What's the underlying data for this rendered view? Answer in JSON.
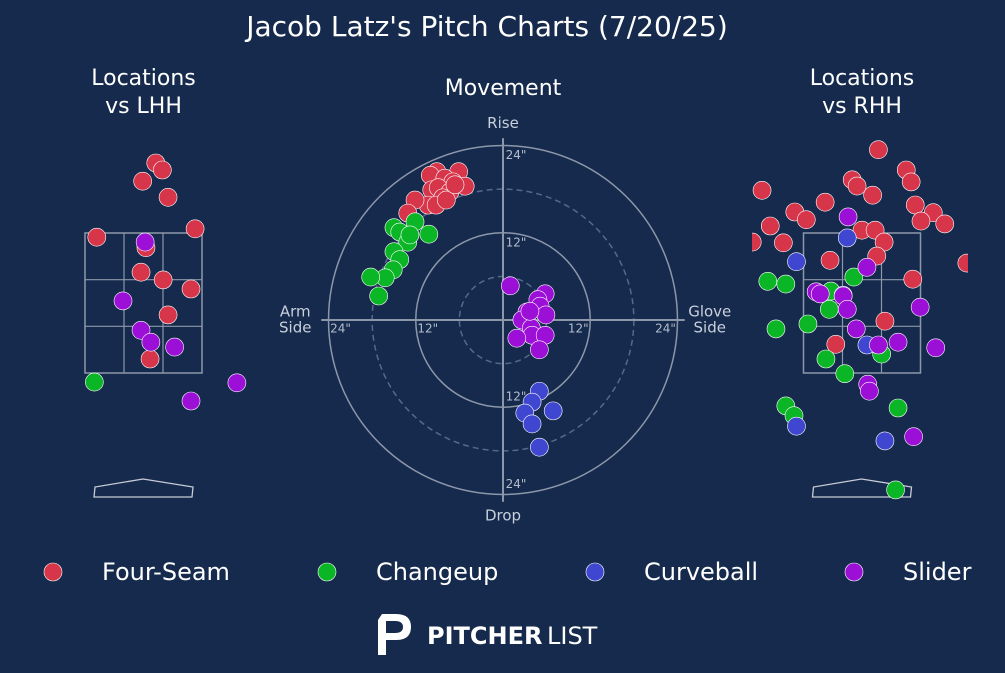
{
  "title": "Jacob Latz's Pitch Charts (7/20/25)",
  "footer": {
    "brand_bold": "PITCHER",
    "brand_light": "LIST"
  },
  "chart_data": [
    {
      "type": "scatter",
      "title_lines": [
        "Locations",
        "vs LHH"
      ],
      "xlim": [
        -1.3,
        1.3
      ],
      "ylim": [
        -0.3,
        4.8
      ],
      "series": [
        {
          "name": "Four-Seam",
          "color": "#d7354a",
          "x": [
            0.15,
            0.23,
            -0.01,
            0.3,
            -0.57,
            0.63,
            0.03,
            -0.03,
            0.24,
            0.58,
            0.3,
            0.08
          ],
          "y": [
            4.5,
            4.4,
            4.24,
            4.01,
            3.44,
            3.56,
            3.29,
            2.94,
            2.83,
            2.7,
            2.33,
            1.7
          ]
        },
        {
          "name": "Changeup",
          "color": "#0ab526",
          "x": [
            -0.6
          ],
          "y": [
            1.37
          ]
        },
        {
          "name": "Slider",
          "color": "#9b0fd6",
          "x": [
            0.02,
            -0.25,
            -0.03,
            0.09,
            0.38,
            0.58,
            1.14
          ],
          "y": [
            3.37,
            2.53,
            2.11,
            1.94,
            1.87,
            1.1,
            1.36
          ]
        }
      ]
    },
    {
      "type": "polar",
      "title_lines": [
        "Movement"
      ],
      "top_label": "Rise",
      "bottom_label": "Drop",
      "left_label": [
        "Arm",
        "Side"
      ],
      "right_label": [
        "Glove",
        "Side"
      ],
      "xlim": [
        -25,
        25
      ],
      "ylim": [
        -25,
        25
      ],
      "xticks": [
        {
          "value": -24,
          "label": "24\""
        },
        {
          "value": -12,
          "label": "12\""
        },
        {
          "value": 12,
          "label": "12\""
        },
        {
          "value": 24,
          "label": "24\""
        }
      ],
      "yticks": [
        {
          "value": -24,
          "label": "24\""
        },
        {
          "value": -12,
          "label": "12\""
        },
        {
          "value": 12,
          "label": "12\""
        },
        {
          "value": 24,
          "label": "24\""
        }
      ],
      "series": [
        {
          "name": "Four-Seam",
          "color": "#d7354a",
          "x": [
            -9.1,
            -6.1,
            -10.0,
            -8.0,
            -6.9,
            -5.2,
            -9.8,
            -8.9,
            -7.3,
            -8.3,
            -10.3,
            -12.1,
            -13.1,
            -9.2,
            -7.8,
            -6.6
          ],
          "y": [
            20.4,
            20.4,
            19.9,
            19.5,
            19.0,
            18.4,
            17.9,
            18.2,
            17.6,
            16.8,
            15.8,
            16.5,
            14.7,
            15.8,
            16.5,
            18.6
          ]
        },
        {
          "name": "Changeup",
          "color": "#0ab526",
          "x": [
            -15.0,
            -14.2,
            -12.1,
            -10.2,
            -13.1,
            -15.0,
            -14.2,
            -15.1,
            -16.2,
            -18.2,
            -17.1,
            -12.8
          ],
          "y": [
            12.7,
            12.1,
            13.5,
            11.8,
            10.7,
            9.4,
            8.3,
            6.9,
            5.8,
            5.9,
            3.3,
            11.7
          ]
        },
        {
          "name": "Curveball",
          "color": "#3f47d0",
          "x": [
            5.0,
            4.0,
            3.0,
            6.9,
            4.0,
            5.0
          ],
          "y": [
            -9.8,
            -11.3,
            -12.8,
            -12.5,
            -14.3,
            -17.5
          ]
        },
        {
          "name": "Slider",
          "color": "#9b0fd6",
          "x": [
            1.0,
            5.8,
            4.8,
            5.1,
            3.3,
            5.9,
            2.6,
            3.9,
            4.0,
            5.8,
            1.9,
            5.0,
            3.7
          ],
          "y": [
            4.7,
            3.6,
            2.8,
            1.9,
            1.1,
            0.7,
            0,
            -1.1,
            -2.1,
            -2.1,
            -2.5,
            -4.1,
            1.2
          ]
        }
      ]
    },
    {
      "type": "scatter",
      "title_lines": [
        "Locations",
        "vs RHH"
      ],
      "xlim": [
        -1.3,
        1.3
      ],
      "ylim": [
        -0.3,
        4.8
      ],
      "series": [
        {
          "name": "Four-Seam",
          "color": "#d7354a",
          "x": [
            0.2,
            -0.12,
            -0.06,
            0.54,
            0.6,
            0.13,
            -1.22,
            -0.45,
            -0.82,
            -0.68,
            0.65,
            0.87,
            0.72,
            1.01,
            -1.12,
            0,
            0.16,
            0.27,
            -1.34,
            -0.96,
            0.18,
            -0.39,
            1.28,
            0.62,
            0.28,
            -0.32
          ],
          "y": [
            4.69,
            4.26,
            4.17,
            4.4,
            4.23,
            4.04,
            4.11,
            3.94,
            3.8,
            3.69,
            3.9,
            3.79,
            3.67,
            3.63,
            3.6,
            3.54,
            3.54,
            3.37,
            3.37,
            3.36,
            3.17,
            3.11,
            3.07,
            2.84,
            2.24,
            1.91
          ]
        },
        {
          "name": "Changeup",
          "color": "#0ab526",
          "x": [
            -1.15,
            -0.93,
            -0.1,
            -0.38,
            -0.4,
            -0.66,
            -1.05,
            0.24,
            -0.44,
            -0.21,
            -0.93,
            -0.83,
            0.44,
            0.41
          ],
          "y": [
            2.81,
            2.77,
            2.87,
            2.67,
            2.41,
            2.2,
            2.13,
            1.77,
            1.7,
            1.49,
            1.03,
            0.89,
            1.0,
            -0.17
          ]
        },
        {
          "name": "Curveball",
          "color": "#3f47d0",
          "x": [
            -0.18,
            -0.8,
            -0.23,
            0.06,
            -0.8,
            0.28
          ],
          "y": [
            3.43,
            3.09,
            2.61,
            1.9,
            0.74,
            0.53
          ]
        },
        {
          "name": "Slider",
          "color": "#9b0fd6",
          "x": [
            -0.17,
            0.06,
            -0.56,
            -0.51,
            -0.23,
            -0.18,
            0.71,
            -0.07,
            0.2,
            0.44,
            0.9,
            0.07,
            0.09,
            0.63
          ],
          "y": [
            3.73,
            3.01,
            2.66,
            2.63,
            2.6,
            2.41,
            2.44,
            2.13,
            1.9,
            1.94,
            1.86,
            1.34,
            1.24,
            0.59
          ]
        }
      ]
    }
  ]
}
